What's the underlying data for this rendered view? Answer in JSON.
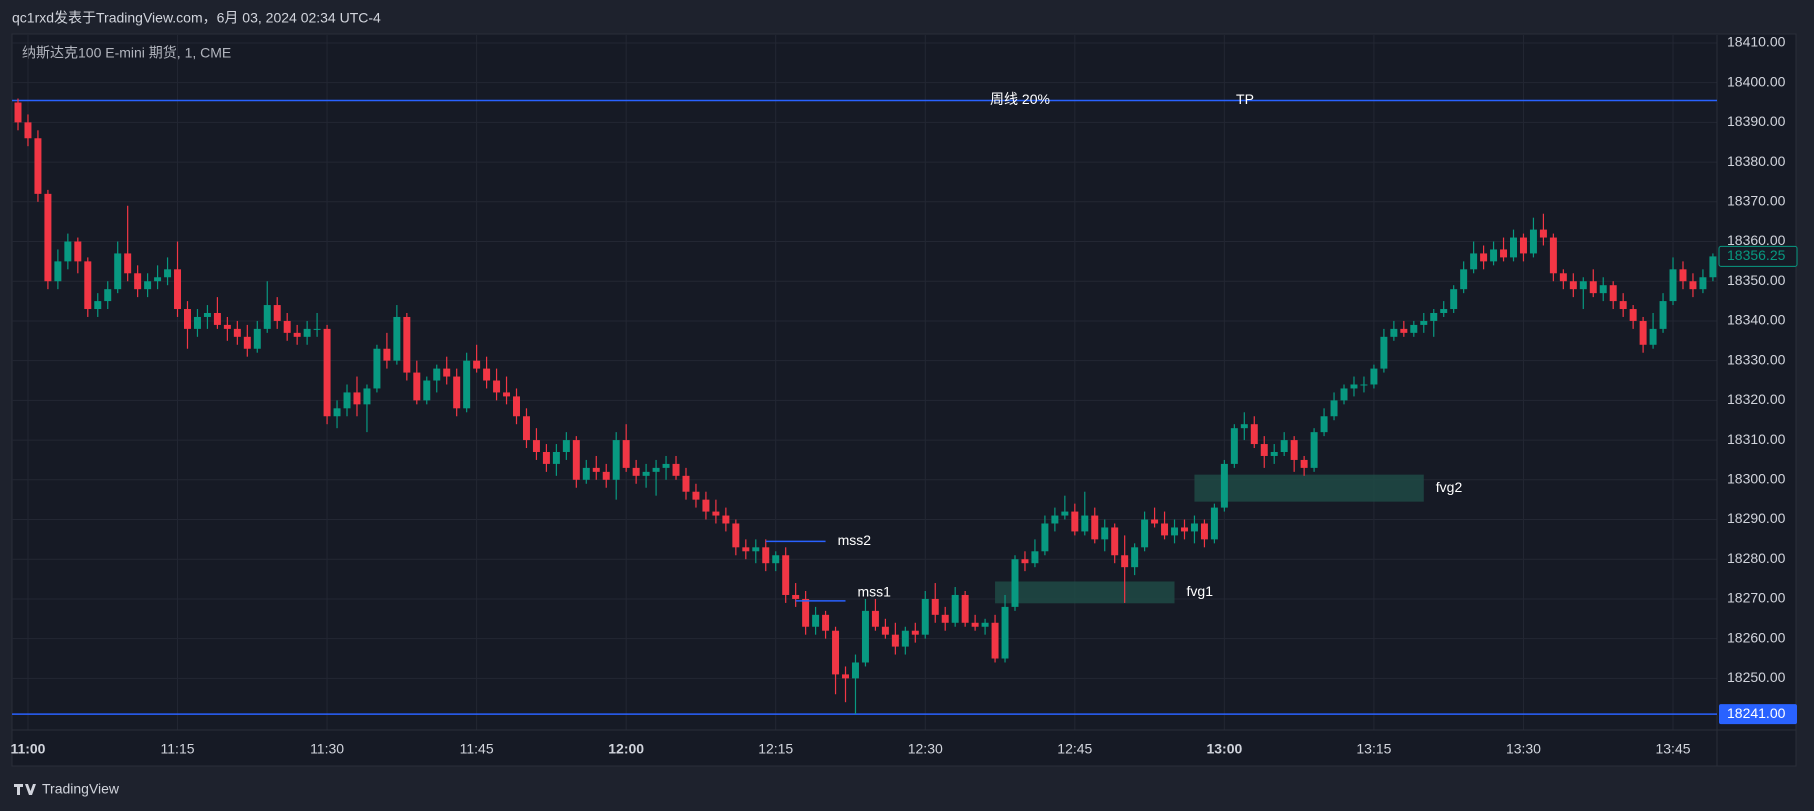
{
  "header": {
    "title": "qc1rxd发表于TradingView.com，6月 03, 2024 02:34 UTC-4"
  },
  "footer": {
    "brand": "TradingView"
  },
  "chart_data": {
    "type": "candlestick",
    "title": "纳斯达克100 E-mini 期货, 1, CME",
    "categories": [
      null,
      "11:00",
      null,
      null,
      null,
      null,
      null,
      null,
      null,
      null,
      null,
      null,
      null,
      null,
      null,
      null,
      "11:15",
      null,
      null,
      null,
      null,
      null,
      null,
      null,
      null,
      null,
      null,
      null,
      null,
      null,
      null,
      "11:30",
      null,
      null,
      null,
      null,
      null,
      null,
      null,
      null,
      null,
      null,
      null,
      null,
      null,
      null,
      "11:45",
      null,
      null,
      null,
      null,
      null,
      null,
      null,
      null,
      null,
      null,
      null,
      null,
      null,
      null,
      "12:00",
      null,
      null,
      null,
      null,
      null,
      null,
      null,
      null,
      null,
      null,
      null,
      null,
      null,
      null,
      "12:15",
      null,
      null,
      null,
      null,
      null,
      null,
      null,
      null,
      null,
      null,
      null,
      null,
      null,
      null,
      "12:30",
      null,
      null,
      null,
      null,
      null,
      null,
      null,
      null,
      null,
      null,
      null,
      null,
      null,
      null,
      "12:45",
      null,
      null,
      null,
      null,
      null,
      null,
      null,
      null,
      null,
      null,
      null,
      null,
      null,
      null,
      "13:00",
      null,
      null,
      null,
      null,
      null,
      null,
      null,
      null,
      null,
      null,
      null,
      null,
      null,
      null,
      "13:15",
      null,
      null,
      null,
      null,
      null,
      null,
      null,
      null,
      null,
      null,
      null,
      null,
      null,
      null,
      "13:30",
      null,
      null,
      null,
      null,
      null,
      null,
      null,
      null,
      null,
      null,
      null,
      null,
      null,
      null,
      "13:45",
      null,
      null,
      null,
      null
    ],
    "ohlc": [
      [
        18395,
        18396,
        18388,
        18390
      ],
      [
        18390,
        18392,
        18384,
        18386
      ],
      [
        18386,
        18388,
        18370,
        18372
      ],
      [
        18372,
        18373,
        18348,
        18350
      ],
      [
        18350,
        18358,
        18348,
        18355
      ],
      [
        18355,
        18362,
        18353,
        18360
      ],
      [
        18360,
        18361,
        18352,
        18355
      ],
      [
        18355,
        18356,
        18341,
        18343
      ],
      [
        18343,
        18347,
        18341,
        18345
      ],
      [
        18345,
        18350,
        18343,
        18348
      ],
      [
        18348,
        18360,
        18347,
        18357
      ],
      [
        18357,
        18369,
        18350,
        18352
      ],
      [
        18352,
        18354,
        18346,
        18348
      ],
      [
        18348,
        18352,
        18346,
        18350
      ],
      [
        18350,
        18354,
        18348,
        18351
      ],
      [
        18351,
        18356,
        18349,
        18353
      ],
      [
        18353,
        18360,
        18341,
        18343
      ],
      [
        18343,
        18345,
        18333,
        18338
      ],
      [
        18338,
        18343,
        18336,
        18341
      ],
      [
        18341,
        18344,
        18338,
        18342
      ],
      [
        18342,
        18346,
        18338,
        18339
      ],
      [
        18339,
        18341,
        18335,
        18338
      ],
      [
        18338,
        18340,
        18334,
        18336
      ],
      [
        18336,
        18339,
        18331,
        18333
      ],
      [
        18333,
        18340,
        18332,
        18338
      ],
      [
        18338,
        18350,
        18337,
        18344
      ],
      [
        18344,
        18346,
        18338,
        18340
      ],
      [
        18340,
        18342,
        18335,
        18337
      ],
      [
        18337,
        18339,
        18334,
        18336
      ],
      [
        18336,
        18340,
        18334,
        18338
      ],
      [
        18338,
        18342,
        18336,
        18338
      ],
      [
        18338,
        18339,
        18314,
        18316
      ],
      [
        18316,
        18320,
        18313,
        18318
      ],
      [
        18318,
        18324,
        18316,
        18322
      ],
      [
        18322,
        18326,
        18316,
        18319
      ],
      [
        18319,
        18324,
        18312,
        18323
      ],
      [
        18323,
        18334,
        18322,
        18333
      ],
      [
        18333,
        18337,
        18328,
        18330
      ],
      [
        18330,
        18344,
        18329,
        18341
      ],
      [
        18341,
        18342,
        18325,
        18327
      ],
      [
        18327,
        18330,
        18319,
        18320
      ],
      [
        18320,
        18326,
        18319,
        18325
      ],
      [
        18325,
        18329,
        18322,
        18328
      ],
      [
        18328,
        18331,
        18324,
        18326
      ],
      [
        18326,
        18328,
        18316,
        18318
      ],
      [
        18318,
        18332,
        18317,
        18330
      ],
      [
        18330,
        18334,
        18327,
        18328
      ],
      [
        18328,
        18331,
        18323,
        18325
      ],
      [
        18325,
        18328,
        18320,
        18322
      ],
      [
        18322,
        18326,
        18319,
        18321
      ],
      [
        18321,
        18323,
        18314,
        18316
      ],
      [
        18316,
        18318,
        18308,
        18310
      ],
      [
        18310,
        18313,
        18305,
        18307
      ],
      [
        18307,
        18309,
        18302,
        18304
      ],
      [
        18304,
        18309,
        18301,
        18307
      ],
      [
        18307,
        18312,
        18305,
        18310
      ],
      [
        18310,
        18311,
        18298,
        18300
      ],
      [
        18300,
        18305,
        18299,
        18303
      ],
      [
        18303,
        18306,
        18300,
        18302
      ],
      [
        18302,
        18304,
        18298,
        18300
      ],
      [
        18300,
        18312,
        18295,
        18310
      ],
      [
        18310,
        18314,
        18302,
        18303
      ],
      [
        18303,
        18305,
        18299,
        18301
      ],
      [
        18301,
        18304,
        18298,
        18302
      ],
      [
        18302,
        18305,
        18296,
        18303
      ],
      [
        18303,
        18306,
        18300,
        18304
      ],
      [
        18304,
        18306,
        18300,
        18301
      ],
      [
        18301,
        18303,
        18295,
        18297
      ],
      [
        18297,
        18299,
        18293,
        18295
      ],
      [
        18295,
        18297,
        18290,
        18292
      ],
      [
        18292,
        18295,
        18289,
        18291
      ],
      [
        18291,
        18293,
        18287,
        18289
      ],
      [
        18289,
        18290,
        18281,
        18283
      ],
      [
        18283,
        18285,
        18280,
        18282
      ],
      [
        18282,
        18285,
        18279,
        18283
      ],
      [
        18283,
        18285,
        18277,
        18279
      ],
      [
        18279,
        18282,
        18277,
        18281
      ],
      [
        18281,
        18283,
        18269,
        18271
      ],
      [
        18271,
        18274,
        18268,
        18270
      ],
      [
        18270,
        18272,
        18261,
        18263
      ],
      [
        18263,
        18268,
        18261,
        18266
      ],
      [
        18266,
        18267,
        18260,
        18262
      ],
      [
        18262,
        18263,
        18246,
        18251
      ],
      [
        18251,
        18253,
        18244,
        18250
      ],
      [
        18250,
        18256,
        18241,
        18254
      ],
      [
        18254,
        18270,
        18253,
        18267
      ],
      [
        18267,
        18270,
        18262,
        18263
      ],
      [
        18263,
        18265,
        18260,
        18261
      ],
      [
        18261,
        18264,
        18256,
        18258
      ],
      [
        18258,
        18263,
        18256,
        18262
      ],
      [
        18262,
        18264,
        18259,
        18261
      ],
      [
        18261,
        18272,
        18260,
        18270
      ],
      [
        18270,
        18274,
        18264,
        18266
      ],
      [
        18266,
        18268,
        18262,
        18264
      ],
      [
        18264,
        18273,
        18263,
        18271
      ],
      [
        18271,
        18272,
        18263,
        18264
      ],
      [
        18264,
        18266,
        18262,
        18263
      ],
      [
        18263,
        18265,
        18261,
        18264
      ],
      [
        18264,
        18266,
        18254,
        18255
      ],
      [
        18255,
        18271,
        18254,
        18268
      ],
      [
        18268,
        18281,
        18267,
        18280
      ],
      [
        18280,
        18282,
        18277,
        18279
      ],
      [
        18279,
        18285,
        18278,
        18282
      ],
      [
        18282,
        18291,
        18281,
        18289
      ],
      [
        18289,
        18293,
        18287,
        18291
      ],
      [
        18291,
        18296,
        18290,
        18292
      ],
      [
        18292,
        18294,
        18286,
        18287
      ],
      [
        18287,
        18297,
        18286,
        18291
      ],
      [
        18291,
        18293,
        18284,
        18285
      ],
      [
        18285,
        18290,
        18282,
        18288
      ],
      [
        18288,
        18289,
        18279,
        18281
      ],
      [
        18281,
        18286,
        18269,
        18278
      ],
      [
        18278,
        18284,
        18276,
        18283
      ],
      [
        18283,
        18292,
        18282,
        18290
      ],
      [
        18290,
        18293,
        18288,
        18289
      ],
      [
        18289,
        18292,
        18285,
        18286
      ],
      [
        18286,
        18290,
        18284,
        18288
      ],
      [
        18288,
        18290,
        18285,
        18287
      ],
      [
        18287,
        18291,
        18284,
        18289
      ],
      [
        18289,
        18290,
        18283,
        18285
      ],
      [
        18285,
        18294,
        18284,
        18293
      ],
      [
        18293,
        18305,
        18292,
        18304
      ],
      [
        18304,
        18314,
        18303,
        18313
      ],
      [
        18313,
        18317,
        18310,
        18314
      ],
      [
        18314,
        18316,
        18308,
        18309
      ],
      [
        18309,
        18311,
        18303,
        18306
      ],
      [
        18306,
        18309,
        18304,
        18307
      ],
      [
        18307,
        18312,
        18306,
        18310
      ],
      [
        18310,
        18311,
        18302,
        18305
      ],
      [
        18305,
        18306,
        18301,
        18303
      ],
      [
        18303,
        18313,
        18302,
        18312
      ],
      [
        18312,
        18318,
        18311,
        18316
      ],
      [
        18316,
        18322,
        18315,
        18320
      ],
      [
        18320,
        18324,
        18319,
        18323
      ],
      [
        18323,
        18326,
        18321,
        18324
      ],
      [
        18324,
        18326,
        18322,
        18324
      ],
      [
        18324,
        18329,
        18323,
        18328
      ],
      [
        18328,
        18338,
        18327,
        18336
      ],
      [
        18336,
        18340,
        18335,
        18338
      ],
      [
        18338,
        18340,
        18336,
        18337
      ],
      [
        18337,
        18340,
        18336,
        18339
      ],
      [
        18339,
        18342,
        18337,
        18340
      ],
      [
        18340,
        18343,
        18336,
        18342
      ],
      [
        18342,
        18345,
        18341,
        18343
      ],
      [
        18343,
        18349,
        18342,
        18348
      ],
      [
        18348,
        18355,
        18347,
        18353
      ],
      [
        18353,
        18360,
        18352,
        18357
      ],
      [
        18357,
        18359,
        18353,
        18355
      ],
      [
        18355,
        18360,
        18354,
        18358
      ],
      [
        18358,
        18361,
        18355,
        18356
      ],
      [
        18356,
        18363,
        18355,
        18361
      ],
      [
        18361,
        18362,
        18355,
        18357
      ],
      [
        18357,
        18366,
        18356,
        18363
      ],
      [
        18363,
        18367,
        18359,
        18361
      ],
      [
        18361,
        18362,
        18350,
        18352
      ],
      [
        18352,
        18353,
        18348,
        18350
      ],
      [
        18350,
        18352,
        18346,
        18348
      ],
      [
        18348,
        18351,
        18343,
        18350
      ],
      [
        18350,
        18353,
        18346,
        18347
      ],
      [
        18347,
        18351,
        18345,
        18349
      ],
      [
        18349,
        18350,
        18343,
        18345
      ],
      [
        18345,
        18347,
        18341,
        18343
      ],
      [
        18343,
        18344,
        18338,
        18340
      ],
      [
        18340,
        18341,
        18332,
        18334
      ],
      [
        18334,
        18342,
        18333,
        18338
      ],
      [
        18338,
        18347,
        18337,
        18345
      ],
      [
        18345,
        18356,
        18344,
        18353
      ],
      [
        18353,
        18355,
        18348,
        18350
      ],
      [
        18350,
        18352,
        18346,
        18348
      ],
      [
        18348,
        18353,
        18347,
        18351
      ],
      [
        18351,
        18357,
        18350,
        18356.25
      ]
    ],
    "up_color": "#089981",
    "down_color": "#f23645",
    "ylim": [
      18237,
      18412
    ],
    "yticks": [
      {
        "value": 18250,
        "label": "18250.00"
      },
      {
        "value": 18260,
        "label": "18260.00"
      },
      {
        "value": 18270,
        "label": "18270.00"
      },
      {
        "value": 18280,
        "label": "18280.00"
      },
      {
        "value": 18290,
        "label": "18290.00"
      },
      {
        "value": 18300,
        "label": "18300.00"
      },
      {
        "value": 18310,
        "label": "18310.00"
      },
      {
        "value": 18320,
        "label": "18320.00"
      },
      {
        "value": 18330,
        "label": "18330.00"
      },
      {
        "value": 18340,
        "label": "18340.00"
      },
      {
        "value": 18350,
        "label": "18350.00"
      },
      {
        "value": 18360,
        "label": "18360.00"
      },
      {
        "value": 18370,
        "label": "18370.00"
      },
      {
        "value": 18380,
        "label": "18380.00"
      },
      {
        "value": 18390,
        "label": "18390.00"
      },
      {
        "value": 18400,
        "label": "18400.00"
      },
      {
        "value": 18410,
        "label": "18410.00"
      }
    ],
    "grid": true,
    "price_lines": [
      {
        "value": 18395.5,
        "color": "#2962ff"
      },
      {
        "value": 18241,
        "label": "18241.00",
        "color": "#2962ff"
      }
    ],
    "annotations": [
      {
        "text": "周线 20%",
        "price": 18395.5
      },
      {
        "text": "TP",
        "price": 18395.5
      },
      {
        "text": "mss2",
        "price": 18284.5,
        "start": 75,
        "end": 81,
        "color": "#2962ff"
      },
      {
        "text": "mss1",
        "price": 18269.5,
        "start": 78,
        "end": 83,
        "color": "#2962ff"
      }
    ],
    "zones": [
      {
        "text": "fvg1",
        "low": 18268.9,
        "high": 18274.4,
        "start": 98,
        "end": 116,
        "color": "#1f4a45"
      },
      {
        "text": "fvg2",
        "low": 18294.5,
        "high": 18301.3,
        "start": 118,
        "end": 141,
        "color": "#1f4a45"
      }
    ]
  }
}
